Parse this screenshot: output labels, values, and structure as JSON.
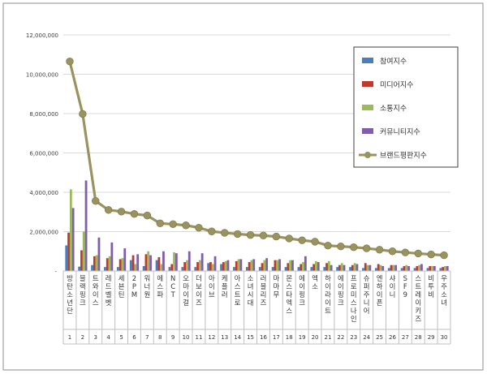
{
  "chart_data": {
    "type": "bar",
    "ylim": [
      0,
      12000000
    ],
    "yticks": [
      {
        "value": 12000000,
        "label": "12,000,000"
      },
      {
        "value": 10000000,
        "label": "10,000,000"
      },
      {
        "value": 8000000,
        "label": "8,000,000"
      },
      {
        "value": 6000000,
        "label": "6,000,000"
      },
      {
        "value": 4000000,
        "label": "4,000,000"
      },
      {
        "value": 2000000,
        "label": "2,000,000"
      },
      {
        "value": 0,
        "label": "-"
      }
    ],
    "grid": true,
    "legend_position": "top-right",
    "categories": [
      "방탄소년단",
      "블랙핑크",
      "트와이스",
      "레드벨벳",
      "세븐틴",
      "2PM",
      "워너원",
      "에스파",
      "NCT",
      "오마이걸",
      "더보이즈",
      "아이브",
      "케플러",
      "아스트로",
      "소녀시대",
      "러블리즈",
      "마마무",
      "몬스타엑스",
      "에이핑크",
      "엑소",
      "하이라이트",
      "에이핑크",
      "프로미스나인",
      "슈퍼주니어",
      "엔하이픈",
      "샤이니",
      "SF9",
      "스트레이키즈",
      "비투비",
      "우주소녀"
    ],
    "ranks": [
      "1",
      "2",
      "3",
      "4",
      "5",
      "6",
      "7",
      "8",
      "9",
      "10",
      "11",
      "12",
      "13",
      "14",
      "15",
      "16",
      "17",
      "18",
      "19",
      "20",
      "21",
      "22",
      "23",
      "24",
      "25",
      "26",
      "27",
      "28",
      "29",
      "30"
    ],
    "series": [
      {
        "name": "참여지수",
        "color": "#4a7ebf",
        "kind": "bar",
        "values": [
          1300000,
          220000,
          300000,
          200000,
          200000,
          550000,
          250000,
          550000,
          200000,
          200000,
          200000,
          400000,
          350000,
          200000,
          200000,
          200000,
          200000,
          200000,
          200000,
          200000,
          200000,
          200000,
          200000,
          150000,
          150000,
          150000,
          150000,
          150000,
          150000,
          150000
        ]
      },
      {
        "name": "미디어지수",
        "color": "#c0392b",
        "kind": "bar",
        "values": [
          1950000,
          1050000,
          750000,
          650000,
          600000,
          800000,
          850000,
          700000,
          350000,
          450000,
          450000,
          450000,
          450000,
          500000,
          450000,
          400000,
          550000,
          400000,
          350000,
          350000,
          400000,
          300000,
          300000,
          400000,
          350000,
          300000,
          250000,
          250000,
          250000,
          200000
        ]
      },
      {
        "name": "소통지수",
        "color": "#9bbb59",
        "kind": "bar",
        "values": [
          4150000,
          2000000,
          800000,
          750000,
          650000,
          350000,
          1000000,
          350000,
          950000,
          550000,
          550000,
          350000,
          500000,
          600000,
          550000,
          550000,
          550000,
          550000,
          450000,
          500000,
          500000,
          400000,
          400000,
          300000,
          300000,
          300000,
          300000,
          300000,
          250000,
          250000
        ]
      },
      {
        "name": "커뮤니티지수",
        "color": "#7f5fa8",
        "kind": "bar",
        "values": [
          3200000,
          4600000,
          1700000,
          1450000,
          1150000,
          850000,
          800000,
          1000000,
          900000,
          1000000,
          900000,
          750000,
          550000,
          600000,
          600000,
          650000,
          600000,
          550000,
          750000,
          450000,
          300000,
          300000,
          350000,
          300000,
          250000,
          300000,
          250000,
          350000,
          250000,
          250000
        ]
      },
      {
        "name": "브랜드평판지수",
        "color": "#9a9360",
        "kind": "line",
        "values": [
          10650000,
          7980000,
          3560000,
          3100000,
          3020000,
          2900000,
          2820000,
          2420000,
          2380000,
          2320000,
          2200000,
          2010000,
          1940000,
          1880000,
          1830000,
          1800000,
          1750000,
          1650000,
          1560000,
          1490000,
          1290000,
          1250000,
          1210000,
          1150000,
          1080000,
          1000000,
          940000,
          890000,
          840000,
          800000
        ]
      }
    ]
  }
}
